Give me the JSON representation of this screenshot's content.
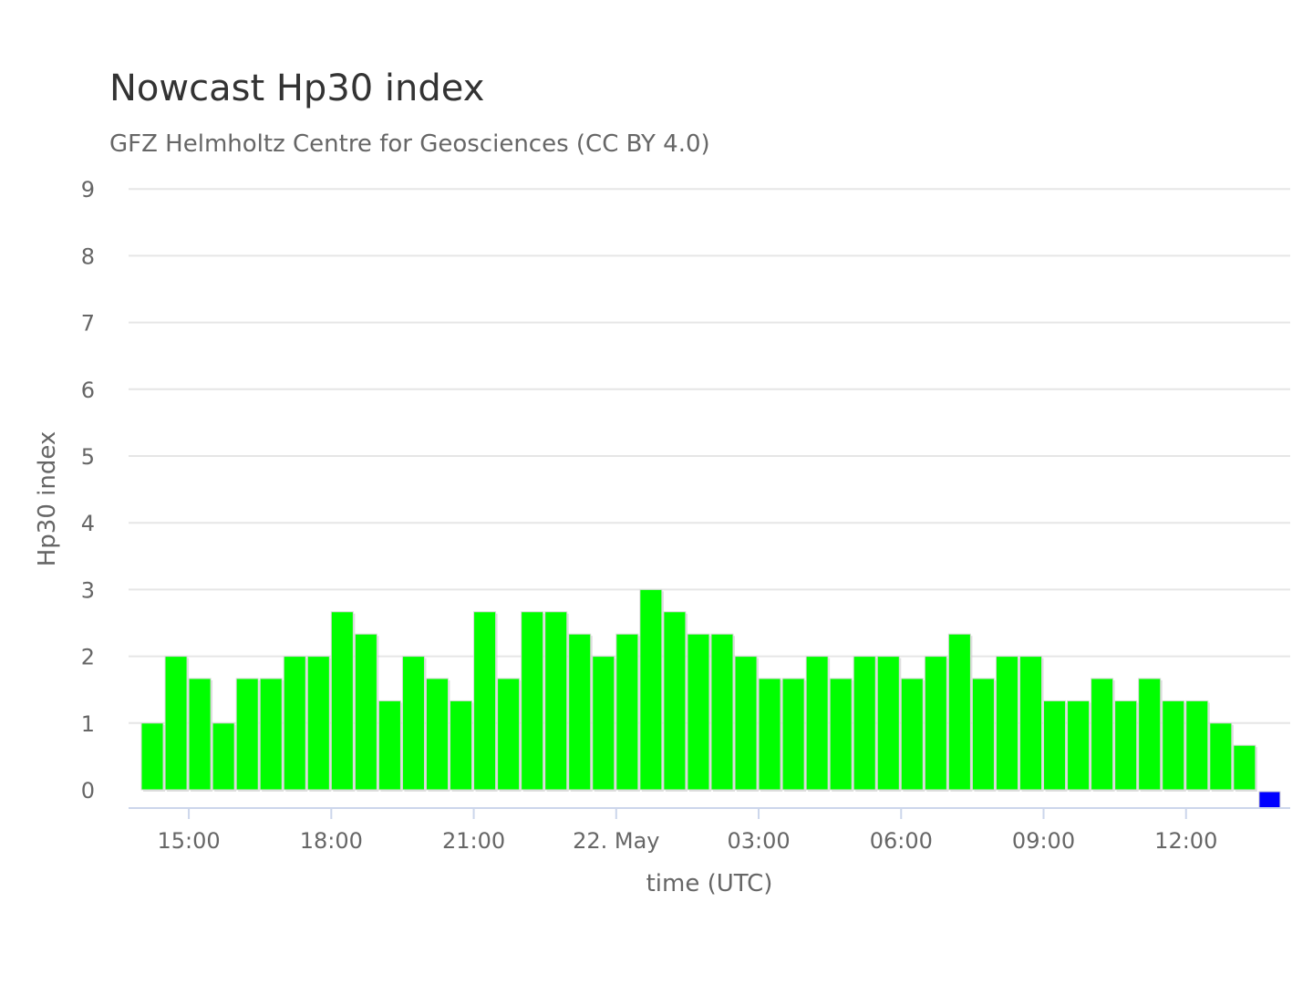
{
  "chart_data": {
    "type": "bar",
    "title": "Nowcast Hp30 index",
    "subtitle": "GFZ Helmholtz Centre for Geosciences (CC BY 4.0)",
    "xlabel": "time (UTC)",
    "ylabel": "Hp30 index",
    "ylim": [
      0,
      9
    ],
    "yticks": [
      "0",
      "1",
      "2",
      "3",
      "4",
      "5",
      "6",
      "7",
      "8",
      "9"
    ],
    "xticks": [
      {
        "label": "15:00",
        "at": "21 May 15:00"
      },
      {
        "label": "18:00",
        "at": "21 May 18:00"
      },
      {
        "label": "21:00",
        "at": "21 May 21:00"
      },
      {
        "label": "22. May",
        "at": "22 May 00:00"
      },
      {
        "label": "03:00",
        "at": "22 May 03:00"
      },
      {
        "label": "06:00",
        "at": "22 May 06:00"
      },
      {
        "label": "09:00",
        "at": "22 May 09:00"
      },
      {
        "label": "12:00",
        "at": "22 May 12:00"
      }
    ],
    "bar_interval_minutes": 30,
    "grid": true,
    "legend": "none",
    "colors": {
      "bar": "#00ff00",
      "latest": "#0000ff",
      "grid": "#e6e6e6",
      "axis": "#ccd6eb"
    },
    "times": [
      "21 May 14:00",
      "21 May 14:30",
      "21 May 15:00",
      "21 May 15:30",
      "21 May 16:00",
      "21 May 16:30",
      "21 May 17:00",
      "21 May 17:30",
      "21 May 18:00",
      "21 May 18:30",
      "21 May 19:00",
      "21 May 19:30",
      "21 May 20:00",
      "21 May 20:30",
      "21 May 21:00",
      "21 May 21:30",
      "21 May 22:00",
      "21 May 22:30",
      "21 May 23:00",
      "21 May 23:30",
      "22 May 00:00",
      "22 May 00:30",
      "22 May 01:00",
      "22 May 01:30",
      "22 May 02:00",
      "22 May 02:30",
      "22 May 03:00",
      "22 May 03:30",
      "22 May 04:00",
      "22 May 04:30",
      "22 May 05:00",
      "22 May 05:30",
      "22 May 06:00",
      "22 May 06:30",
      "22 May 07:00",
      "22 May 07:30",
      "22 May 08:00",
      "22 May 08:30",
      "22 May 09:00",
      "22 May 09:30",
      "22 May 10:00",
      "22 May 10:30",
      "22 May 11:00",
      "22 May 11:30",
      "22 May 12:00",
      "22 May 12:30",
      "22 May 13:00",
      "22 May 13:30"
    ],
    "values": [
      1.0,
      2.0,
      1.667,
      1.0,
      1.667,
      1.667,
      2.0,
      2.0,
      2.667,
      2.333,
      1.333,
      2.0,
      1.667,
      1.333,
      2.667,
      1.667,
      2.667,
      2.667,
      2.333,
      2.0,
      2.333,
      3.0,
      2.667,
      2.333,
      2.333,
      2.0,
      1.667,
      1.667,
      2.0,
      1.667,
      2.0,
      2.0,
      1.667,
      2.0,
      2.333,
      1.667,
      2.0,
      2.0,
      1.333,
      1.333,
      1.667,
      1.333,
      1.667,
      1.333,
      1.333,
      1.0,
      0.667,
      0.0
    ]
  }
}
